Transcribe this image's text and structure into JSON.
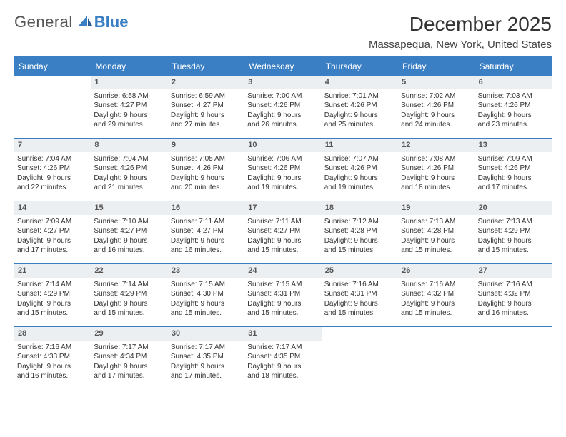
{
  "logo": {
    "general": "General",
    "blue": "Blue"
  },
  "title": "December 2025",
  "location": "Massapequa, New York, United States",
  "colors": {
    "brand": "#3a7fc4",
    "daybar": "#eceff2",
    "text": "#333333",
    "bg": "#ffffff"
  },
  "weekdays": [
    "Sunday",
    "Monday",
    "Tuesday",
    "Wednesday",
    "Thursday",
    "Friday",
    "Saturday"
  ],
  "weeks": [
    [
      null,
      {
        "d": "1",
        "sr": "Sunrise: 6:58 AM",
        "ss": "Sunset: 4:27 PM",
        "dl1": "Daylight: 9 hours",
        "dl2": "and 29 minutes."
      },
      {
        "d": "2",
        "sr": "Sunrise: 6:59 AM",
        "ss": "Sunset: 4:27 PM",
        "dl1": "Daylight: 9 hours",
        "dl2": "and 27 minutes."
      },
      {
        "d": "3",
        "sr": "Sunrise: 7:00 AM",
        "ss": "Sunset: 4:26 PM",
        "dl1": "Daylight: 9 hours",
        "dl2": "and 26 minutes."
      },
      {
        "d": "4",
        "sr": "Sunrise: 7:01 AM",
        "ss": "Sunset: 4:26 PM",
        "dl1": "Daylight: 9 hours",
        "dl2": "and 25 minutes."
      },
      {
        "d": "5",
        "sr": "Sunrise: 7:02 AM",
        "ss": "Sunset: 4:26 PM",
        "dl1": "Daylight: 9 hours",
        "dl2": "and 24 minutes."
      },
      {
        "d": "6",
        "sr": "Sunrise: 7:03 AM",
        "ss": "Sunset: 4:26 PM",
        "dl1": "Daylight: 9 hours",
        "dl2": "and 23 minutes."
      }
    ],
    [
      {
        "d": "7",
        "sr": "Sunrise: 7:04 AM",
        "ss": "Sunset: 4:26 PM",
        "dl1": "Daylight: 9 hours",
        "dl2": "and 22 minutes."
      },
      {
        "d": "8",
        "sr": "Sunrise: 7:04 AM",
        "ss": "Sunset: 4:26 PM",
        "dl1": "Daylight: 9 hours",
        "dl2": "and 21 minutes."
      },
      {
        "d": "9",
        "sr": "Sunrise: 7:05 AM",
        "ss": "Sunset: 4:26 PM",
        "dl1": "Daylight: 9 hours",
        "dl2": "and 20 minutes."
      },
      {
        "d": "10",
        "sr": "Sunrise: 7:06 AM",
        "ss": "Sunset: 4:26 PM",
        "dl1": "Daylight: 9 hours",
        "dl2": "and 19 minutes."
      },
      {
        "d": "11",
        "sr": "Sunrise: 7:07 AM",
        "ss": "Sunset: 4:26 PM",
        "dl1": "Daylight: 9 hours",
        "dl2": "and 19 minutes."
      },
      {
        "d": "12",
        "sr": "Sunrise: 7:08 AM",
        "ss": "Sunset: 4:26 PM",
        "dl1": "Daylight: 9 hours",
        "dl2": "and 18 minutes."
      },
      {
        "d": "13",
        "sr": "Sunrise: 7:09 AM",
        "ss": "Sunset: 4:26 PM",
        "dl1": "Daylight: 9 hours",
        "dl2": "and 17 minutes."
      }
    ],
    [
      {
        "d": "14",
        "sr": "Sunrise: 7:09 AM",
        "ss": "Sunset: 4:27 PM",
        "dl1": "Daylight: 9 hours",
        "dl2": "and 17 minutes."
      },
      {
        "d": "15",
        "sr": "Sunrise: 7:10 AM",
        "ss": "Sunset: 4:27 PM",
        "dl1": "Daylight: 9 hours",
        "dl2": "and 16 minutes."
      },
      {
        "d": "16",
        "sr": "Sunrise: 7:11 AM",
        "ss": "Sunset: 4:27 PM",
        "dl1": "Daylight: 9 hours",
        "dl2": "and 16 minutes."
      },
      {
        "d": "17",
        "sr": "Sunrise: 7:11 AM",
        "ss": "Sunset: 4:27 PM",
        "dl1": "Daylight: 9 hours",
        "dl2": "and 15 minutes."
      },
      {
        "d": "18",
        "sr": "Sunrise: 7:12 AM",
        "ss": "Sunset: 4:28 PM",
        "dl1": "Daylight: 9 hours",
        "dl2": "and 15 minutes."
      },
      {
        "d": "19",
        "sr": "Sunrise: 7:13 AM",
        "ss": "Sunset: 4:28 PM",
        "dl1": "Daylight: 9 hours",
        "dl2": "and 15 minutes."
      },
      {
        "d": "20",
        "sr": "Sunrise: 7:13 AM",
        "ss": "Sunset: 4:29 PM",
        "dl1": "Daylight: 9 hours",
        "dl2": "and 15 minutes."
      }
    ],
    [
      {
        "d": "21",
        "sr": "Sunrise: 7:14 AM",
        "ss": "Sunset: 4:29 PM",
        "dl1": "Daylight: 9 hours",
        "dl2": "and 15 minutes."
      },
      {
        "d": "22",
        "sr": "Sunrise: 7:14 AM",
        "ss": "Sunset: 4:29 PM",
        "dl1": "Daylight: 9 hours",
        "dl2": "and 15 minutes."
      },
      {
        "d": "23",
        "sr": "Sunrise: 7:15 AM",
        "ss": "Sunset: 4:30 PM",
        "dl1": "Daylight: 9 hours",
        "dl2": "and 15 minutes."
      },
      {
        "d": "24",
        "sr": "Sunrise: 7:15 AM",
        "ss": "Sunset: 4:31 PM",
        "dl1": "Daylight: 9 hours",
        "dl2": "and 15 minutes."
      },
      {
        "d": "25",
        "sr": "Sunrise: 7:16 AM",
        "ss": "Sunset: 4:31 PM",
        "dl1": "Daylight: 9 hours",
        "dl2": "and 15 minutes."
      },
      {
        "d": "26",
        "sr": "Sunrise: 7:16 AM",
        "ss": "Sunset: 4:32 PM",
        "dl1": "Daylight: 9 hours",
        "dl2": "and 15 minutes."
      },
      {
        "d": "27",
        "sr": "Sunrise: 7:16 AM",
        "ss": "Sunset: 4:32 PM",
        "dl1": "Daylight: 9 hours",
        "dl2": "and 16 minutes."
      }
    ],
    [
      {
        "d": "28",
        "sr": "Sunrise: 7:16 AM",
        "ss": "Sunset: 4:33 PM",
        "dl1": "Daylight: 9 hours",
        "dl2": "and 16 minutes."
      },
      {
        "d": "29",
        "sr": "Sunrise: 7:17 AM",
        "ss": "Sunset: 4:34 PM",
        "dl1": "Daylight: 9 hours",
        "dl2": "and 17 minutes."
      },
      {
        "d": "30",
        "sr": "Sunrise: 7:17 AM",
        "ss": "Sunset: 4:35 PM",
        "dl1": "Daylight: 9 hours",
        "dl2": "and 17 minutes."
      },
      {
        "d": "31",
        "sr": "Sunrise: 7:17 AM",
        "ss": "Sunset: 4:35 PM",
        "dl1": "Daylight: 9 hours",
        "dl2": "and 18 minutes."
      },
      null,
      null,
      null
    ]
  ]
}
